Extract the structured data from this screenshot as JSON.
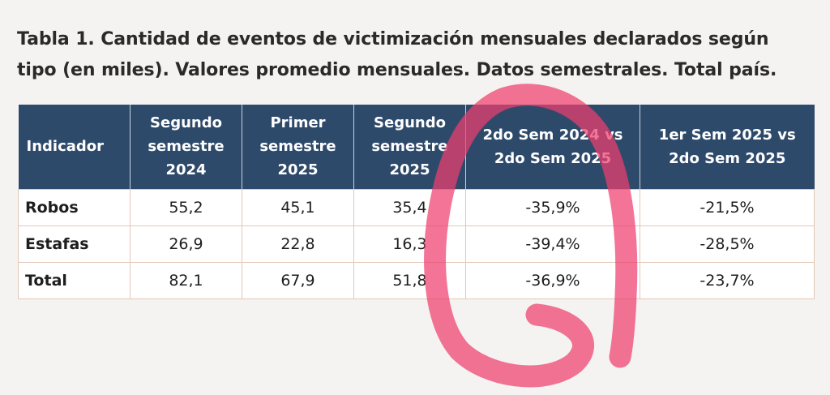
{
  "title": {
    "line1": "Tabla 1. Cantidad de eventos de victimización mensuales declarados según",
    "line2": "tipo (en miles). Valores promedio mensuales. Datos semestrales. Total país."
  },
  "table": {
    "headers": [
      {
        "line1": "Indicador",
        "line2": "",
        "line3": ""
      },
      {
        "line1": "Segundo",
        "line2": "semestre",
        "line3": "2024"
      },
      {
        "line1": "Primer",
        "line2": "semestre",
        "line3": "2025"
      },
      {
        "line1": "Segundo",
        "line2": "semestre",
        "line3": "2025"
      },
      {
        "line1": "2do Sem 2024 vs",
        "line2": "2do Sem 2025",
        "line3": ""
      },
      {
        "line1": "1er Sem 2025 vs",
        "line2": "2do Sem 2025",
        "line3": ""
      }
    ],
    "rows": [
      [
        "Robos",
        "55,2",
        "45,1",
        "35,4",
        "-35,9%",
        "-21,5%"
      ],
      [
        "Estafas",
        "26,9",
        "22,8",
        "16,3",
        "-39,4%",
        "-28,5%"
      ],
      [
        "Total",
        "82,1",
        "67,9",
        "51,8",
        "-36,9%",
        "-23,7%"
      ]
    ]
  },
  "annotation": {
    "color": "#ee3f6e"
  }
}
